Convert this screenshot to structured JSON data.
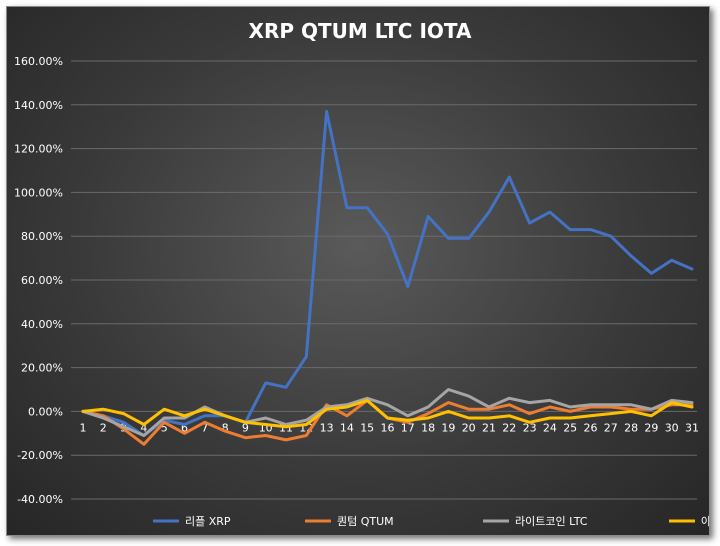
{
  "chart_data": {
    "type": "line",
    "title": "XRP  QTUM  LTC  IOTA",
    "xlabel": "",
    "ylabel": "",
    "ylim": [
      -40,
      160
    ],
    "ytick_step": 20,
    "ytick_format": "percent_2dp",
    "grid": true,
    "legend_position": "bottom",
    "x": [
      1,
      2,
      3,
      4,
      5,
      6,
      7,
      8,
      9,
      10,
      11,
      12,
      13,
      14,
      15,
      16,
      17,
      18,
      19,
      20,
      21,
      22,
      23,
      24,
      25,
      26,
      27,
      28,
      29,
      30,
      31
    ],
    "series": [
      {
        "name": "리플 XRP",
        "color": "#4472C4",
        "values": [
          0,
          -2,
          -5,
          -11,
          -4,
          -6,
          -2,
          -2,
          -5,
          13,
          11,
          25,
          137,
          93,
          93,
          81,
          57,
          89,
          79,
          79,
          91,
          107,
          86,
          91,
          83,
          83,
          80,
          71,
          63,
          69,
          65
        ]
      },
      {
        "name": "퀀텀 QTUM",
        "color": "#ED7D31",
        "values": [
          0,
          -2,
          -8,
          -15,
          -5,
          -10,
          -5,
          -9,
          -12,
          -11,
          -13,
          -11,
          3,
          -2,
          5,
          -3,
          -5,
          -1,
          4,
          1,
          1,
          3,
          -1,
          2,
          0,
          2,
          2,
          1,
          1,
          3,
          3
        ]
      },
      {
        "name": "라이트코인 LTC",
        "color": "#A5A5A5",
        "values": [
          0,
          -3,
          -7,
          -11,
          -3,
          -3,
          2,
          -2,
          -5,
          -3,
          -6,
          -4,
          2,
          3,
          6,
          3,
          -2,
          2,
          10,
          7,
          2,
          6,
          4,
          5,
          2,
          3,
          3,
          3,
          1,
          5,
          4
        ]
      },
      {
        "name": "아이오타 IOTA",
        "color": "#FFC000",
        "values": [
          0,
          1,
          -1,
          -6,
          1,
          -2,
          1,
          -2,
          -5,
          -6,
          -7,
          -6,
          1,
          2,
          5,
          -3,
          -4,
          -3,
          0,
          -3,
          -3,
          -2,
          -5,
          -3,
          -3,
          -2,
          -1,
          0,
          -2,
          4,
          2
        ]
      }
    ]
  }
}
